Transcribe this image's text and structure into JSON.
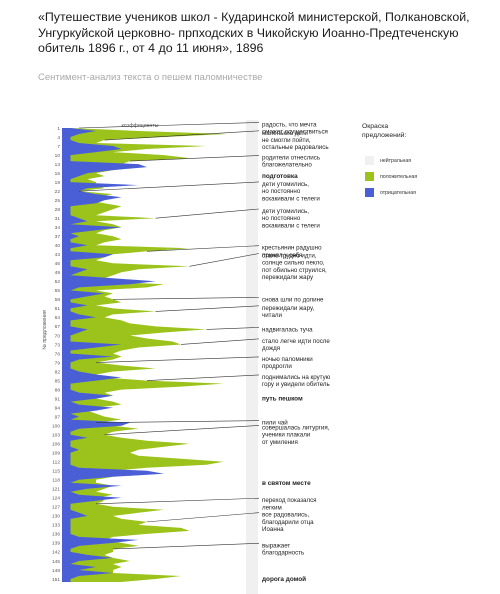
{
  "title": "«Путешествие учеников школ - Кударинской министерской, Полкановской, Унгуркуйской церковно- прпходских в Чикойскую Иоанно-Предтеченскую обитель 1896 г., от 4 до 11 июня», 1896",
  "subtitle": "Сентимент-анализ текста о пешем паломничестве",
  "chart_data": {
    "type": "area",
    "orientation": "vertical-streamgraph",
    "xlabel": "коэффициенты",
    "ylabel": "№ предложения",
    "y_ticks": [
      "1",
      "4",
      "7",
      "10",
      "13",
      "16",
      "19",
      "22",
      "25",
      "28",
      "31",
      "34",
      "37",
      "40",
      "43",
      "46",
      "49",
      "52",
      "55",
      "58",
      "61",
      "64",
      "67",
      "70",
      "73",
      "76",
      "79",
      "82",
      "85",
      "88",
      "91",
      "94",
      "97",
      "100",
      "103",
      "106",
      "109",
      "112",
      "115",
      "118",
      "121",
      "124",
      "127",
      "130",
      "133",
      "136",
      "139",
      "142",
      "145",
      "148",
      "151"
    ],
    "legend": {
      "title": "Окраска предложений:",
      "position": "right",
      "items": [
        {
          "name": "нейтральная",
          "color": "#f0f0f0"
        },
        {
          "name": "положительная",
          "color": "#9bc31c"
        },
        {
          "name": "отрицательная",
          "color": "#4a5fd6"
        }
      ]
    },
    "series": [
      {
        "name": "положительная",
        "color": "#9bc31c",
        "values": [
          0.05,
          0.45,
          0.97,
          0.6,
          0.25,
          0.2,
          0.85,
          0.5,
          0.3,
          0.6,
          0.75,
          0.4,
          0.35,
          0.45,
          0.3,
          0.2,
          0.25,
          0.15,
          0.2,
          0.2,
          0.25,
          0.1,
          0.3,
          0.2,
          0.15,
          0.25,
          0.35,
          0.3,
          0.25,
          0.2,
          0.55,
          0.2,
          0.3,
          0.35,
          0.25,
          0.2,
          0.3,
          0.35,
          0.25,
          0.2,
          0.75,
          0.5,
          0.3,
          0.25,
          0.2,
          0.3,
          0.75,
          0.45,
          0.35,
          0.3,
          0.25,
          0.2,
          0.6,
          0.5,
          0.2,
          0.3,
          0.25,
          0.3,
          0.35,
          0.2,
          0.3,
          0.55,
          0.3,
          0.25,
          0.35,
          0.4,
          0.55,
          0.85,
          0.6,
          0.4,
          0.5,
          0.65,
          0.7,
          0.45,
          0.35,
          0.3,
          0.35,
          0.3,
          0.2,
          0.35,
          0.55,
          0.3,
          0.2,
          0.25,
          0.5,
          0.95,
          0.7,
          0.35,
          0.25,
          0.3,
          0.2,
          0.3,
          0.35,
          0.2,
          0.15,
          0.2,
          0.25,
          0.35,
          0.2,
          0.3,
          0.45,
          0.3,
          0.25,
          0.35,
          0.5,
          0.75,
          0.6,
          0.45,
          0.4,
          0.45,
          0.7,
          0.95,
          0.85,
          0.5,
          0.3,
          0.25,
          0.3,
          0.2,
          0.2,
          0.3,
          0.25,
          0.2,
          0.3,
          0.2,
          0.25,
          0.2,
          0.3,
          0.6,
          0.45,
          0.3,
          0.35,
          0.5,
          0.45,
          0.7,
          0.75,
          0.5,
          0.3,
          0.25,
          0.35,
          0.45,
          0.3,
          0.3,
          0.25,
          0.3,
          0.4,
          0.3,
          0.35,
          0.3,
          0.3,
          0.7,
          0.55,
          0.35
        ]
      },
      {
        "name": "отрицательная",
        "color": "#4a5fd6",
        "values": [
          0.05,
          0.2,
          0.1,
          0.05,
          0.05,
          0.1,
          0.3,
          0.35,
          0.2,
          0.05,
          0.05,
          0.05,
          0.45,
          0.5,
          0.3,
          0.15,
          0.1,
          0.05,
          0.05,
          0.45,
          0.15,
          0.1,
          0.2,
          0.35,
          0.25,
          0.2,
          0.05,
          0.05,
          0.05,
          0.05,
          0.1,
          0.15,
          0.05,
          0.35,
          0.2,
          0.05,
          0.1,
          0.05,
          0.05,
          0.15,
          0.05,
          0.05,
          0.3,
          0.25,
          0.05,
          0.05,
          0.05,
          0.15,
          0.1,
          0.05,
          0.3,
          0.55,
          0.4,
          0.1,
          0.05,
          0.25,
          0.15,
          0.05,
          0.05,
          0.15,
          0.05,
          0.05,
          0.1,
          0.2,
          0.05,
          0.05,
          0.05,
          0.15,
          0.1,
          0.05,
          0.05,
          0.05,
          0.35,
          0.2,
          0.05,
          0.05,
          0.3,
          0.1,
          0.05,
          0.05,
          0.05,
          0.1,
          0.2,
          0.35,
          0.2,
          0.05,
          0.05,
          0.05,
          0.1,
          0.3,
          0.2,
          0.05,
          0.1,
          0.3,
          0.2,
          0.05,
          0.1,
          0.05,
          0.4,
          0.35,
          0.1,
          0.05,
          0.05,
          0.15,
          0.05,
          0.05,
          0.05,
          0.1,
          0.05,
          0.05,
          0.05,
          0.05,
          0.05,
          0.1,
          0.5,
          0.6,
          0.3,
          0.1,
          0.05,
          0.35,
          0.15,
          0.05,
          0.1,
          0.35,
          0.2,
          0.05,
          0.05,
          0.05,
          0.1,
          0.15,
          0.05,
          0.05,
          0.05,
          0.05,
          0.05,
          0.05,
          0.1,
          0.45,
          0.3,
          0.1,
          0.05,
          0.05,
          0.15,
          0.3,
          0.1,
          0.05,
          0.2,
          0.1,
          0.3,
          0.1,
          0.05,
          0.05,
          0.05,
          0.2,
          0.05
        ]
      }
    ],
    "annotations": [
      {
        "y": 1,
        "text": [
          "радость, что мечта",
          "сможет осуществиться"
        ],
        "bold": false
      },
      {
        "y": 5,
        "text": [
          "маленькие дети",
          "не смогли пойти,",
          "остальные радовались"
        ],
        "bold": false
      },
      {
        "y": 12,
        "text": [
          "родители отнеслись",
          "благожелательно"
        ],
        "bold": false
      },
      {
        "y": 17,
        "text": [
          "подготовка"
        ],
        "bold": true
      },
      {
        "y": 22,
        "text": [
          "дети утомились,",
          "но постоянно",
          "вскакивали с телеги"
        ],
        "bold": false
      },
      {
        "y": 31,
        "text": [
          "дети утомились,",
          "но постоянно",
          "вскакивали с телеги"
        ],
        "bold": false
      },
      {
        "y": 42,
        "text": [
          "крестьянин радушно",
          "принял у себя"
        ],
        "bold": false
      },
      {
        "y": 47,
        "text": [
          "стало трудно идти,",
          "солнце сильно пекло,",
          "пот обильно струился,",
          "пережидали жару"
        ],
        "bold": false
      },
      {
        "y": 58,
        "text": [
          "снова шли по долине"
        ],
        "bold": false
      },
      {
        "y": 62,
        "text": [
          "пережидали жару,",
          "читали"
        ],
        "bold": false
      },
      {
        "y": 68,
        "text": [
          "надвигалась туча"
        ],
        "bold": false
      },
      {
        "y": 73,
        "text": [
          "стало легче идти после",
          "дождя"
        ],
        "bold": false
      },
      {
        "y": 79,
        "text": [
          "ночью паломники",
          "продрогли"
        ],
        "bold": false
      },
      {
        "y": 85,
        "text": [
          "поднимались на крутую",
          "гору и увидели обитель"
        ],
        "bold": false
      },
      {
        "y": 91,
        "text": [
          "путь пешком"
        ],
        "bold": true
      },
      {
        "y": 99,
        "text": [
          "пили чай"
        ],
        "bold": false
      },
      {
        "y": 103,
        "text": [
          "совершалась литургия,",
          "ученики плакали",
          "от умиления"
        ],
        "bold": false
      },
      {
        "y": 119,
        "text": [
          "в святом месте"
        ],
        "bold": true
      },
      {
        "y": 126,
        "text": [
          "переход показался",
          "легким"
        ],
        "bold": false
      },
      {
        "y": 132,
        "text": [
          "все радовались,",
          "благодарили отца",
          "Иоанна"
        ],
        "bold": false
      },
      {
        "y": 141,
        "text": [
          "выражает",
          "благодарность"
        ],
        "bold": false
      },
      {
        "y": 151,
        "text": [
          "дорога домой"
        ],
        "bold": true
      }
    ]
  }
}
